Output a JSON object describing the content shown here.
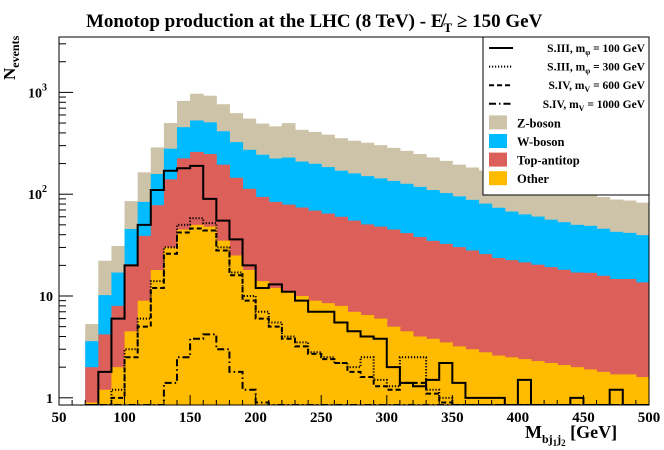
{
  "chart_data": {
    "type": "area",
    "title": "Monotop production at the LHC (8 TeV) - E̸",
    "title_sub": "T",
    "title_cut": " ≥ 150 GeV",
    "xlabel": "M",
    "xlabel_sub": "bj",
    "xlabel_sub2": "1",
    "xlabel_sub3": "j",
    "xlabel_sub4": "2",
    "xlabel_unit": " [GeV]",
    "ylabel": "N",
    "ylabel_sub": "events",
    "xlim": [
      50,
      500
    ],
    "ylim": [
      0.85,
      3500
    ],
    "yscale": "log",
    "grid": false,
    "legend_position": "top-right",
    "x_ticks": [
      "50",
      "100",
      "150",
      "200",
      "250",
      "300",
      "350",
      "400",
      "450",
      "500"
    ],
    "y_ticks": [
      {
        "value": 1,
        "label": "1"
      },
      {
        "value": 10,
        "label": "10"
      },
      {
        "value": 100,
        "label": "10",
        "exp": "2"
      },
      {
        "value": 1000,
        "label": "10",
        "exp": "3"
      }
    ],
    "bin_edges_start": 70,
    "bin_width": 10,
    "stack_colors": {
      "Other": "#FFBB00",
      "Top-antitop": "#DC5F5A",
      "W-boson": "#00BBFF",
      "Z-boson": "#CDC3A8"
    },
    "stacks": [
      {
        "name": "Other",
        "values": [
          0.9,
          1.2,
          2.0,
          4.5,
          9,
          18,
          30,
          45,
          50,
          48,
          35,
          25,
          18,
          14,
          12,
          11,
          10,
          9,
          8.5,
          8,
          7,
          6.5,
          6,
          5,
          4.5,
          4,
          3.8,
          3.5,
          3.2,
          3.0,
          2.8,
          2.6,
          2.5,
          2.4,
          2.3,
          2.2,
          2.1,
          2.0,
          1.9,
          1.8,
          1.7,
          1.7,
          1.6,
          1.5,
          1.4
        ]
      },
      {
        "name": "Top-antitop",
        "values": [
          1.1,
          3,
          6,
          16,
          30,
          60,
          110,
          180,
          210,
          200,
          160,
          120,
          95,
          80,
          72,
          68,
          64,
          60,
          56,
          52,
          48,
          44,
          42,
          40,
          37,
          34,
          31,
          29,
          27,
          25,
          23,
          21,
          20,
          19,
          18,
          17,
          16,
          15,
          15,
          14,
          13,
          13,
          12,
          12,
          11
        ]
      },
      {
        "name": "W-boson",
        "values": [
          1.6,
          6,
          9,
          25,
          45,
          80,
          140,
          230,
          270,
          260,
          220,
          180,
          160,
          150,
          140,
          150,
          135,
          130,
          120,
          110,
          105,
          100,
          95,
          90,
          85,
          80,
          75,
          70,
          65,
          60,
          55,
          50,
          45,
          42,
          40,
          37,
          35,
          33,
          32,
          30,
          28,
          27,
          26,
          25,
          24
        ]
      },
      {
        "name": "Z-boson",
        "values": [
          1.7,
          12,
          14,
          40,
          80,
          130,
          220,
          370,
          440,
          420,
          350,
          300,
          280,
          250,
          240,
          270,
          220,
          210,
          200,
          185,
          175,
          170,
          160,
          150,
          140,
          130,
          120,
          110,
          100,
          95,
          90,
          80,
          75,
          70,
          65,
          60,
          55,
          52,
          50,
          48,
          46,
          45,
          43,
          42,
          41
        ]
      }
    ],
    "series": [
      {
        "name": "S.III, m",
        "name_sub": "φ",
        "name_rest": " = 100 GeV",
        "style": "solid",
        "values": [
          0.8,
          1.8,
          6,
          20,
          50,
          110,
          170,
          180,
          190,
          90,
          55,
          36,
          20,
          12,
          13,
          11,
          9,
          7,
          7,
          5.5,
          4.5,
          4,
          3.8,
          2,
          1.4,
          1.3,
          1.5,
          2.2,
          1.4,
          1,
          1,
          1,
          0.8,
          1.5,
          0.8,
          0.8,
          0.8,
          1,
          0.8,
          0.8,
          1.2,
          0.8,
          0.8,
          0.8,
          0.8
        ]
      },
      {
        "name": "S.III, m",
        "name_sub": "φ",
        "name_rest": " = 300 GeV",
        "style": "dotted",
        "values": [
          0.8,
          0.8,
          1.2,
          3,
          6,
          14,
          30,
          50,
          58,
          52,
          30,
          17,
          10,
          7,
          5.5,
          4,
          3.5,
          2.8,
          2.5,
          2.2,
          2.0,
          2.5,
          1.5,
          1.3,
          2.5,
          2.5,
          1.2,
          1.0,
          0.8,
          0.8,
          0.8,
          0.8,
          0.8,
          0.8,
          0.8,
          0.8,
          0.8,
          0.8,
          0.8,
          0.8,
          0.8,
          0.8,
          0.8,
          0.8,
          0.8
        ]
      },
      {
        "name": "S.IV, m",
        "name_sub": "V",
        "name_rest": " = 600 GeV",
        "style": "dashed",
        "values": [
          0.8,
          0.8,
          1.0,
          2.5,
          5,
          12,
          26,
          42,
          46,
          44,
          28,
          16,
          9,
          6,
          5,
          3.8,
          3.2,
          2.7,
          2.4,
          2.2,
          1.8,
          1.6,
          1.3,
          1.2,
          1.4,
          1.4,
          1.1,
          0.9,
          0.8,
          0.8,
          0.8,
          0.8,
          0.8,
          0.8,
          0.8,
          0.8,
          0.8,
          0.8,
          0.8,
          0.8,
          0.8,
          0.8,
          0.8,
          0.8,
          0.8
        ]
      },
      {
        "name": "S.IV, m",
        "name_sub": "V",
        "name_rest": " = 1000 GeV",
        "style": "dashdot",
        "values": [
          0.8,
          0.8,
          0.8,
          0.8,
          0.8,
          0.8,
          1.4,
          2.5,
          3.8,
          4.2,
          3.0,
          1.8,
          1.2,
          0.9,
          0.8,
          0.8,
          0.8,
          0.8,
          0.8,
          0.8,
          0.8,
          0.8,
          0.8,
          0.8,
          0.8,
          0.8,
          0.8,
          0.8,
          0.8,
          0.8,
          0.8,
          0.8,
          0.8,
          0.8,
          0.8,
          0.8,
          0.8,
          0.8,
          0.8,
          0.8,
          0.8,
          0.8,
          0.8,
          0.8,
          0.8
        ]
      }
    ],
    "legend": [
      {
        "kind": "line",
        "style": "solid",
        "label": "S.III, m",
        "sub": "φ",
        "rest": " = 100 GeV"
      },
      {
        "kind": "line",
        "style": "dotted",
        "label": "S.III, m",
        "sub": "φ",
        "rest": " = 300 GeV"
      },
      {
        "kind": "line",
        "style": "dashed",
        "label": "S.IV, m",
        "sub": "V",
        "rest": " = 600 GeV"
      },
      {
        "kind": "line",
        "style": "dashdot",
        "label": "S.IV, m",
        "sub": "V",
        "rest": " = 1000 GeV"
      },
      {
        "kind": "box",
        "color": "#CDC3A8",
        "label": "Z-boson"
      },
      {
        "kind": "box",
        "color": "#00BBFF",
        "label": "W-boson"
      },
      {
        "kind": "box",
        "color": "#DC5F5A",
        "label": "Top-antitop"
      },
      {
        "kind": "box",
        "color": "#FFBB00",
        "label": "Other"
      }
    ]
  }
}
